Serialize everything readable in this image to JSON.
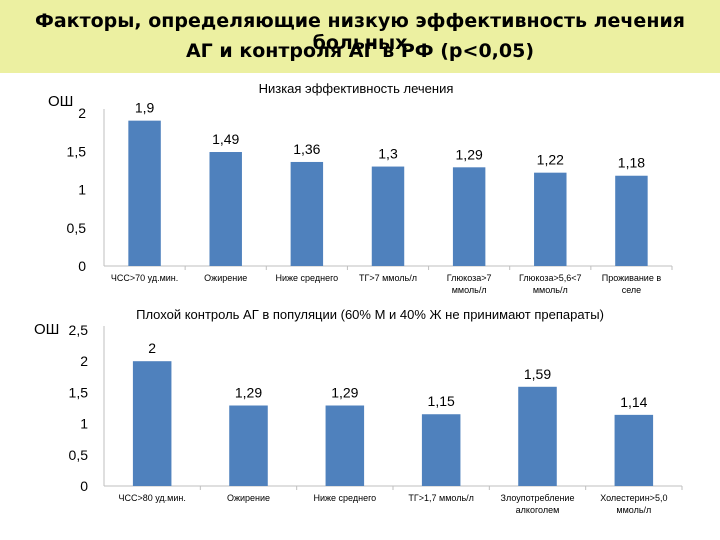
{
  "header": {
    "title_line1": "Факторы, определяющие низкую эффективность лечения больных",
    "title_line2": "АГ и контроля АГ в  РФ (р<0,05)"
  },
  "colors": {
    "bar": "#4f81bd",
    "header_bg": "#ecf0a1",
    "axis": "#bfbfbf"
  },
  "chart_data": [
    {
      "type": "bar",
      "title": "Низкая эффективность лечения",
      "ylabel": "ОШ",
      "ylim": [
        0,
        2
      ],
      "yticks": [
        "0",
        "0,5",
        "1",
        "1,5",
        "2"
      ],
      "categories": [
        [
          "ЧСС>70 уд.мин."
        ],
        [
          "Ожирение"
        ],
        [
          "Ниже среднего"
        ],
        [
          "ТГ>7 ммоль/л"
        ],
        [
          "Глюкоза>7",
          "ммоль/л"
        ],
        [
          "Глюкоза>5,6<7",
          "ммоль/л"
        ],
        [
          "Проживание в",
          "селе"
        ]
      ],
      "values": [
        1.9,
        1.49,
        1.36,
        1.3,
        1.29,
        1.22,
        1.18
      ],
      "value_labels": [
        "1,9",
        "1,49",
        "1,36",
        "1,3",
        "1,29",
        "1,22",
        "1,18"
      ]
    },
    {
      "type": "bar",
      "title": "Плохой контроль АГ в популяции (60% М и 40% Ж не принимают препараты)",
      "ylabel": "ОШ",
      "ylim": [
        0,
        2.5
      ],
      "yticks": [
        "0",
        "0,5",
        "1",
        "1,5",
        "2",
        "2,5"
      ],
      "categories": [
        [
          "ЧСС>80 уд.мин."
        ],
        [
          "Ожирение"
        ],
        [
          "Ниже среднего"
        ],
        [
          "ТГ>1,7 ммоль/л"
        ],
        [
          "Злоупотребление",
          "алкоголем"
        ],
        [
          "Холестерин>5,0",
          "ммоль/л"
        ]
      ],
      "values": [
        2,
        1.29,
        1.29,
        1.15,
        1.59,
        1.14
      ],
      "value_labels": [
        "2",
        "1,29",
        "1,29",
        "1,15",
        "1,59",
        "1,14"
      ]
    }
  ]
}
